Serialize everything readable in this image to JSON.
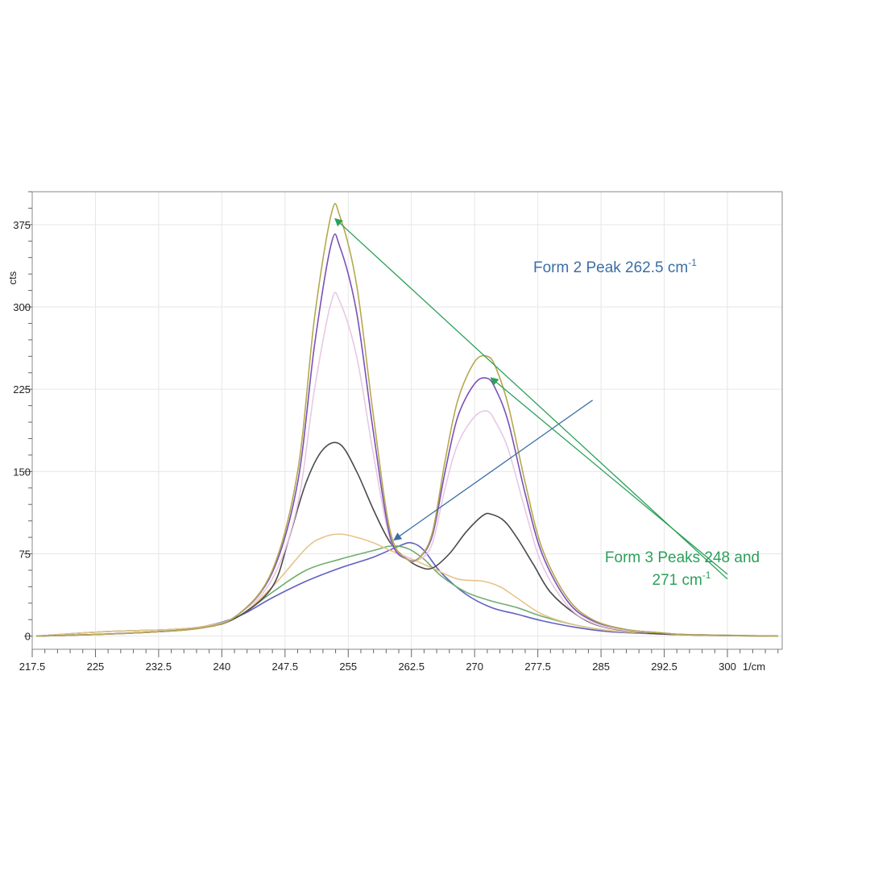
{
  "chart_data": {
    "type": "line",
    "title": "",
    "xlabel": "1/cm",
    "ylabel": "cts",
    "xlim": [
      217.5,
      306.5
    ],
    "ylim": [
      -12,
      405
    ],
    "grid": true,
    "x_ticks": [
      217.5,
      225,
      232.5,
      240,
      247.5,
      255,
      262.5,
      270,
      277.5,
      285,
      292.5,
      300
    ],
    "x_tick_labels": [
      "217.5",
      "225",
      "232.5",
      "240",
      "247.5",
      "255",
      "262.5",
      "270",
      "277.5",
      "285",
      "292.5",
      "300"
    ],
    "y_ticks": [
      0,
      75,
      150,
      225,
      300,
      375
    ],
    "y_tick_labels": [
      "0",
      "75",
      "150",
      "225",
      "300",
      "375"
    ],
    "series": [
      {
        "color": "#b5a84e",
        "x": [
          218,
          230,
          238,
          242,
          246,
          249,
          251,
          253,
          254,
          256,
          258,
          260,
          262,
          263.5,
          265,
          266.5,
          268,
          270,
          271.5,
          272.5,
          274,
          276,
          278,
          281,
          284,
          288,
          292,
          296,
          306
        ],
        "y": [
          0,
          3,
          8,
          20,
          60,
          150,
          290,
          385,
          383,
          320,
          200,
          95,
          70,
          72,
          95,
          160,
          215,
          250,
          255,
          245,
          210,
          140,
          80,
          35,
          15,
          6,
          3,
          1,
          0
        ]
      },
      {
        "color": "#7b50b8",
        "x": [
          218,
          230,
          238,
          242,
          246,
          249,
          251,
          253,
          254,
          256,
          258,
          260,
          262,
          263.5,
          265,
          266.5,
          268,
          270,
          271.5,
          272.5,
          274,
          276,
          278,
          281,
          284,
          288,
          292,
          296,
          306
        ],
        "y": [
          0,
          3,
          8,
          20,
          58,
          140,
          265,
          358,
          355,
          295,
          185,
          90,
          70,
          72,
          92,
          150,
          200,
          230,
          235,
          225,
          195,
          130,
          75,
          32,
          14,
          6,
          3,
          1,
          0
        ]
      },
      {
        "color": "#e8c8e4",
        "x": [
          218,
          230,
          238,
          242,
          246,
          249,
          251,
          253,
          254,
          256,
          258,
          260,
          262,
          263.5,
          265,
          266.5,
          268,
          270,
          271.5,
          272.5,
          274,
          276,
          278,
          281,
          284,
          288,
          292,
          296,
          306
        ],
        "y": [
          0,
          3,
          8,
          20,
          52,
          120,
          225,
          305,
          305,
          255,
          165,
          88,
          72,
          70,
          85,
          135,
          175,
          200,
          205,
          195,
          170,
          115,
          65,
          28,
          12,
          5,
          3,
          1,
          0
        ]
      },
      {
        "color": "#4a4a4a",
        "x": [
          218,
          230,
          238,
          242,
          246,
          248,
          250,
          252,
          254,
          256,
          258,
          260,
          262,
          263.5,
          265,
          267,
          269,
          271,
          272,
          273.5,
          275,
          277,
          279,
          282,
          285,
          290,
          296,
          306
        ],
        "y": [
          0,
          3,
          8,
          18,
          45,
          90,
          140,
          170,
          175,
          150,
          115,
          85,
          70,
          63,
          62,
          75,
          95,
          110,
          111,
          105,
          90,
          65,
          40,
          20,
          9,
          3,
          1,
          0
        ]
      },
      {
        "color": "#e8c389",
        "x": [
          218,
          226,
          234,
          238,
          242,
          246,
          250,
          252,
          254,
          256,
          258,
          260,
          262,
          265,
          268,
          271,
          273,
          275,
          278,
          282,
          286,
          292,
          298,
          306
        ],
        "y": [
          0,
          4,
          6,
          9,
          18,
          45,
          80,
          90,
          93,
          90,
          85,
          78,
          72,
          62,
          52,
          50,
          45,
          35,
          20,
          10,
          5,
          2,
          1,
          0
        ]
      },
      {
        "color": "#6fae6f",
        "x": [
          218,
          226,
          234,
          238,
          242,
          246,
          250,
          254,
          258,
          260,
          262,
          264,
          266,
          269,
          272,
          275,
          278,
          282,
          286,
          292,
          298,
          306
        ],
        "y": [
          0,
          4,
          6,
          9,
          18,
          40,
          60,
          70,
          78,
          82,
          80,
          70,
          55,
          40,
          32,
          26,
          18,
          10,
          5,
          2,
          1,
          0
        ]
      },
      {
        "color": "#6060c0",
        "x": [
          218,
          226,
          234,
          238,
          242,
          246,
          250,
          254,
          258,
          261,
          262.5,
          264,
          266,
          269,
          272,
          275,
          278,
          282,
          286,
          292,
          298,
          306
        ],
        "y": [
          0,
          4,
          6,
          9,
          18,
          35,
          50,
          62,
          72,
          82,
          85,
          78,
          58,
          38,
          26,
          20,
          14,
          8,
          4,
          2,
          1,
          0
        ]
      }
    ],
    "annotations": [
      {
        "text": "Form 2 Peak 262.5 cm",
        "superscript": "-1",
        "color": "#3b6ea5",
        "arrow_from": [
          284,
          215
        ],
        "arrow_to": [
          260.5,
          88
        ]
      },
      {
        "text_line1": "Form 3 Peaks 248 and",
        "text_line2": "271 cm",
        "superscript": "-1",
        "color": "#2ca05a",
        "arrow_from": [
          300,
          52
        ],
        "arrow_to_a": [
          253.5,
          380
        ],
        "arrow_to_b": [
          272,
          235
        ]
      }
    ]
  }
}
